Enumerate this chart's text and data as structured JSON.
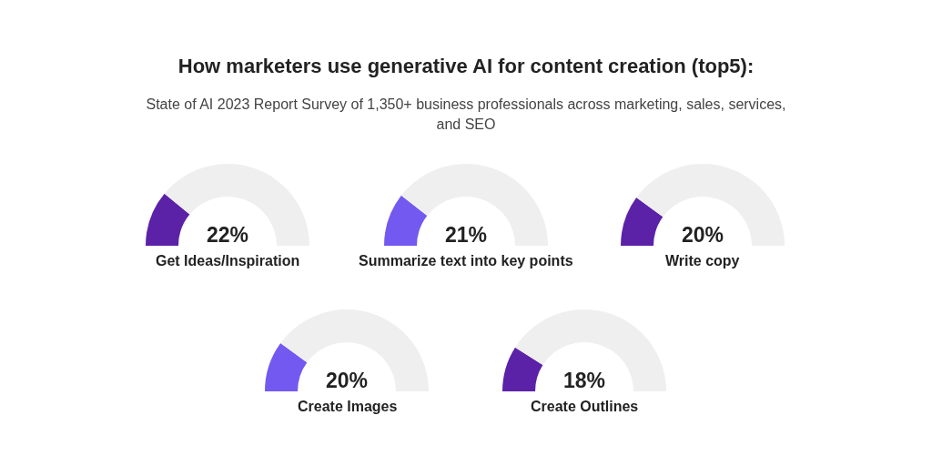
{
  "chart_data": [
    {
      "type": "other",
      "title": "How marketers use generative AI for content creation (top5):",
      "subtitle": "State of AI 2023 Report Survey of 1,350+ business professionals across marketing, sales, services, and SEO"
    },
    {
      "type": "donut",
      "title": "Get Ideas/Inspiration",
      "categories": [
        null,
        null
      ],
      "values": [
        22,
        78
      ],
      "colors": [
        "#5b22a8",
        "#efefef"
      ],
      "annotations": [
        "22%"
      ]
    },
    {
      "type": "donut",
      "title": "Summarize text into key points",
      "categories": [
        null,
        null
      ],
      "values": [
        21,
        79
      ],
      "colors": [
        "#7459f0",
        "#efefef"
      ],
      "annotations": [
        "21%"
      ]
    },
    {
      "type": "donut",
      "title": "Write copy",
      "categories": [
        null,
        null
      ],
      "values": [
        20,
        80
      ],
      "colors": [
        "#5b22a8",
        "#efefef"
      ],
      "annotations": [
        "20%"
      ]
    },
    {
      "type": "donut",
      "title": "Create Images",
      "categories": [
        null,
        null
      ],
      "values": [
        20,
        80
      ],
      "colors": [
        "#7459f0",
        "#efefef"
      ],
      "annotations": [
        "20%"
      ]
    },
    {
      "type": "donut",
      "title": "Create Outlines",
      "categories": [
        null,
        null
      ],
      "values": [
        18,
        82
      ],
      "colors": [
        "#5b22a8",
        "#efefef"
      ],
      "annotations": [
        "18%"
      ]
    }
  ]
}
